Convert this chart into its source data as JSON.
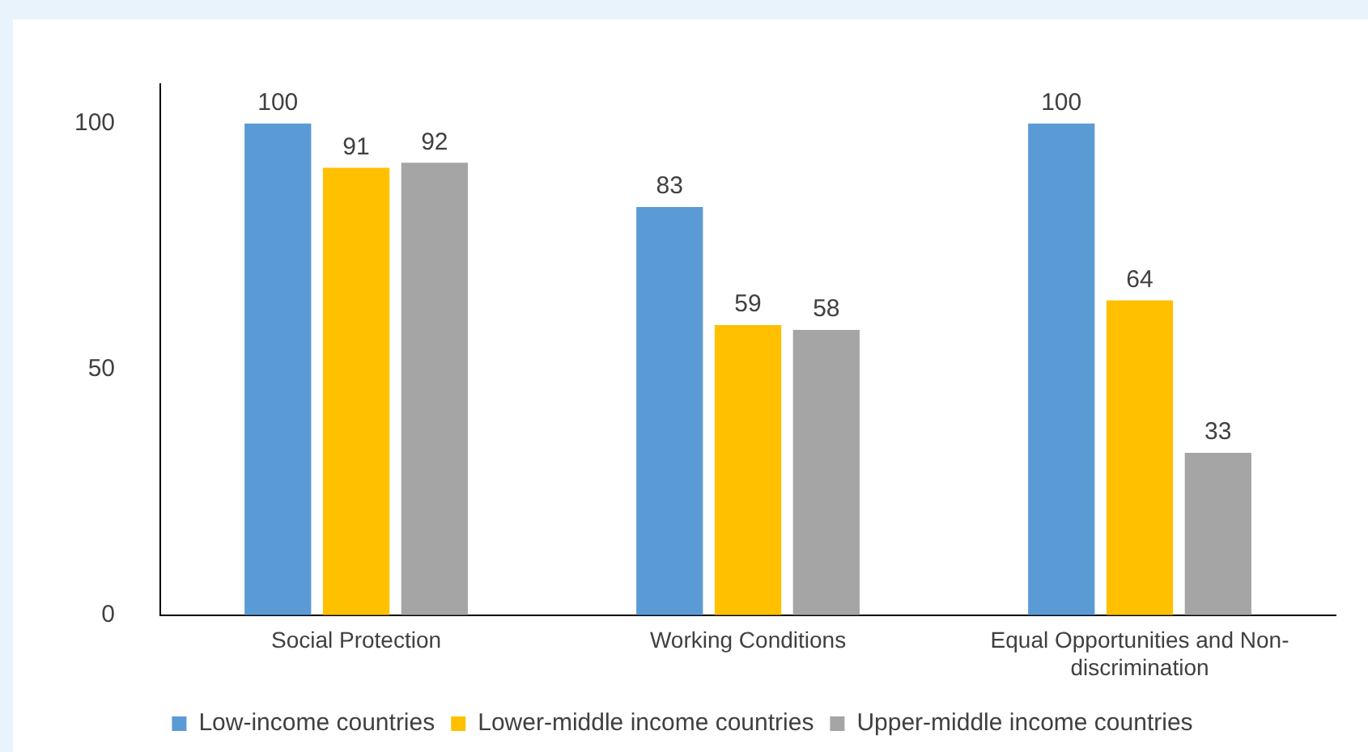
{
  "chart_data": {
    "type": "bar",
    "categories": [
      "Social Protection",
      "Working Conditions",
      "Equal Opportunities and Non-discrimination"
    ],
    "series": [
      {
        "name": "Low-income countries",
        "color": "#5b9bd5",
        "values": [
          100,
          83,
          100
        ]
      },
      {
        "name": "Lower-middle income countries",
        "color": "#ffc000",
        "values": [
          91,
          59,
          64
        ]
      },
      {
        "name": "Upper-middle income countries",
        "color": "#a5a5a5",
        "values": [
          92,
          58,
          33
        ]
      }
    ],
    "ylim": [
      0,
      108
    ],
    "yticks": [
      0,
      50,
      100
    ],
    "grid": false,
    "legend": "bottom",
    "data_labels": true
  }
}
